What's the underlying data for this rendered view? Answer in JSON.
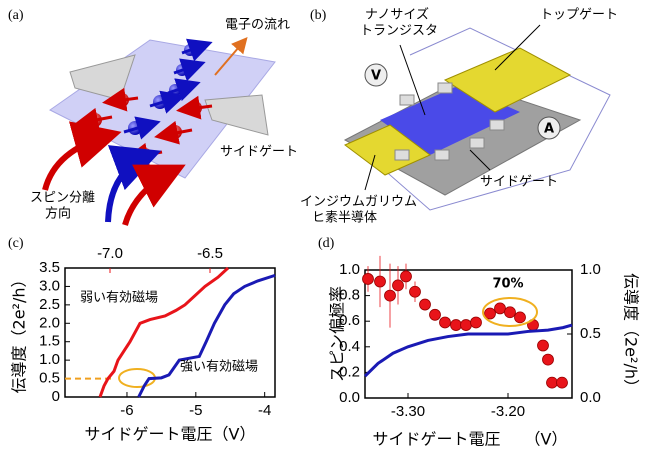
{
  "panels": {
    "a": {
      "label": "(a)",
      "electron_flow": "電子の流れ",
      "side_gate": "サイドゲート",
      "spin_split": [
        "スピン分離",
        "方向"
      ]
    },
    "b": {
      "label": "(b)",
      "transistor": [
        "ナノサイズ",
        "トランジスタ"
      ],
      "top_gate": "トップゲート",
      "side_gate": "サイドゲート",
      "semiconductor": [
        "インジウムガリウム",
        "ヒ素半導体"
      ],
      "voltmeter": "V",
      "ammeter": "A"
    }
  },
  "chart_data": [
    {
      "type": "line",
      "panel_label": "(c)",
      "xlabel": "サイドゲート電圧（V）",
      "ylabel": "伝導度（2e²/h）",
      "xlim": [
        -6.9,
        -3.85
      ],
      "xticks": [
        -6,
        -5,
        -4
      ],
      "x2lim": [
        -7.225,
        -6.175
      ],
      "x2ticks": [
        {
          "value": -7,
          "label": "-7.0"
        },
        -6.5
      ],
      "x2color": "#e8141a",
      "ylim": [
        0,
        3.5
      ],
      "yticks": [
        0,
        0.5,
        {
          "value": 1,
          "label": "1.0"
        },
        1.5,
        {
          "value": 2,
          "label": "2.0"
        },
        2.5,
        {
          "value": 3,
          "label": "3.0"
        },
        3.5
      ],
      "series": [
        {
          "name": "弱い有効磁場",
          "color": "#e8141a",
          "axis": "x2",
          "x": [
            -7.05,
            -7.03,
            -7.01,
            -6.98,
            -6.96,
            -6.9,
            -6.85,
            -6.8,
            -6.725,
            -6.67,
            -6.625,
            -6.525,
            -6.46,
            -6.41
          ],
          "values": [
            0,
            0.3,
            0.5,
            0.7,
            1.0,
            1.5,
            2.0,
            2.1,
            2.2,
            2.35,
            2.5,
            3.0,
            3.25,
            3.5
          ]
        },
        {
          "name": "強い有効磁場",
          "color": "#1a1ab4",
          "x": [
            -5.83,
            -5.75,
            -5.68,
            -5.5,
            -5.39,
            -5.24,
            -5.1,
            -4.95,
            -4.85,
            -4.73,
            -4.58,
            -4.45,
            -4.29,
            -4.1,
            -3.85
          ],
          "values": [
            0,
            0.3,
            0.5,
            0.52,
            0.6,
            1.0,
            1.05,
            1.1,
            1.5,
            2.0,
            2.5,
            2.8,
            3.0,
            3.15,
            3.3
          ]
        }
      ]
    },
    {
      "type": "scatter",
      "panel_label": "(d)",
      "xlabel": "サイドゲート電圧　　（V）",
      "ylabel": "スピン偏極率",
      "y2label": "伝導度（2e²/h）",
      "annotation": "70%",
      "xlim": [
        -3.343,
        -3.136
      ],
      "xticks": [
        {
          "value": -3.3,
          "label": "-3.30"
        },
        {
          "value": -3.2,
          "label": "-3.20"
        }
      ],
      "ylim": [
        0,
        1
      ],
      "yticks": [
        {
          "value": 0,
          "label": "0.0"
        },
        0.2,
        0.4,
        0.6,
        0.8,
        {
          "value": 1,
          "label": "1.0"
        }
      ],
      "ycolor": "#e8141a",
      "y2lim": [
        0,
        1
      ],
      "y2ticks": [
        {
          "value": 0,
          "label": "0.0"
        },
        0.5,
        {
          "value": 1,
          "label": "1.0"
        }
      ],
      "y2color": "#1a1ab4",
      "series": [
        {
          "color": "#e8141a",
          "x": [
            -3.34,
            -3.328,
            -3.318,
            -3.31,
            -3.302,
            -3.293,
            -3.283,
            -3.273,
            -3.263,
            -3.252,
            -3.242,
            -3.232,
            -3.218,
            -3.208,
            -3.198,
            -3.188,
            -3.175,
            -3.165,
            -3.16,
            -3.156,
            -3.146
          ],
          "values": [
            0.93,
            0.91,
            0.8,
            0.88,
            0.95,
            0.83,
            0.73,
            0.65,
            0.59,
            0.57,
            0.57,
            0.59,
            0.66,
            0.7,
            0.67,
            0.63,
            0.57,
            0.41,
            0.3,
            0.12,
            0.12
          ],
          "errors": [
            0.1,
            0.2,
            0.25,
            0.15,
            0.1,
            0.08,
            null,
            null,
            null,
            null,
            null,
            null,
            null,
            null,
            null,
            null,
            null,
            null,
            null,
            null,
            null
          ]
        },
        {
          "type": "line",
          "color": "#1a1ab4",
          "axis": "y2",
          "x": [
            -3.343,
            -3.33,
            -3.315,
            -3.3,
            -3.28,
            -3.26,
            -3.24,
            -3.22,
            -3.2,
            -3.18,
            -3.16,
            -3.145,
            -3.136
          ],
          "values": [
            0.17,
            0.27,
            0.35,
            0.4,
            0.45,
            0.48,
            0.5,
            0.5,
            0.5,
            0.52,
            0.53,
            0.55,
            0.57
          ]
        }
      ]
    }
  ]
}
